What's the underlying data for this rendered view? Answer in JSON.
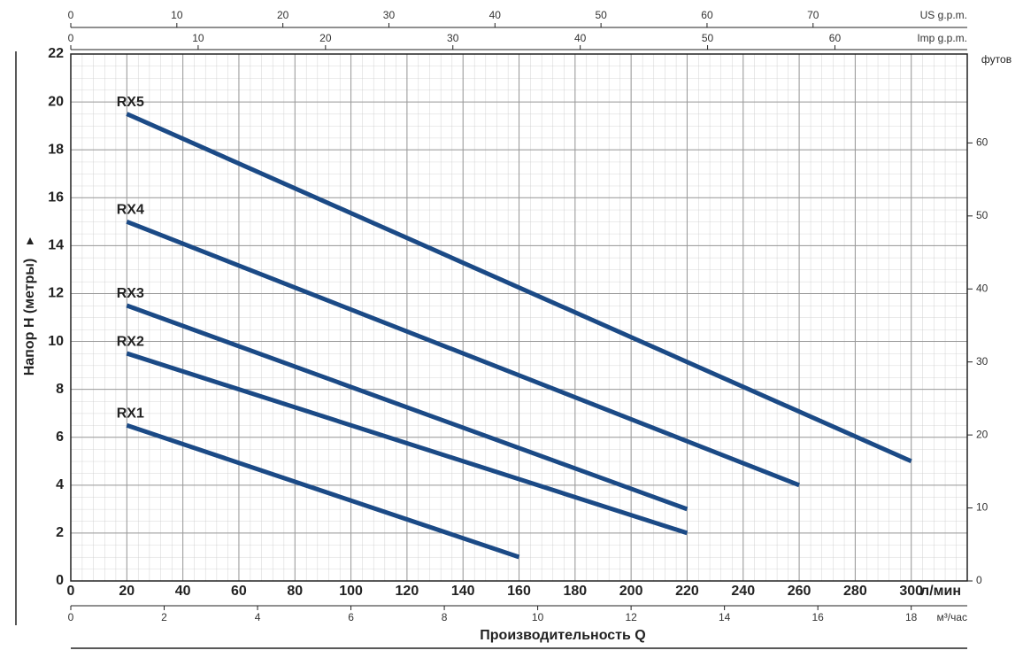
{
  "chart_data": {
    "type": "line",
    "xlabel": "л/мин",
    "ylabel": "Напор H (метры)",
    "x_title": "Производительность Q",
    "xlim": [
      0,
      320
    ],
    "xticks": [
      0,
      20,
      40,
      60,
      80,
      100,
      120,
      140,
      160,
      180,
      200,
      220,
      240,
      260,
      280,
      300
    ],
    "ylim": [
      0,
      22
    ],
    "yticks": [
      0,
      2,
      4,
      6,
      8,
      10,
      12,
      14,
      16,
      18,
      20,
      22
    ],
    "y2label": "футов",
    "y2lim": [
      0,
      72.18
    ],
    "y2ticks": [
      0,
      10,
      20,
      30,
      40,
      50,
      60
    ],
    "secondary_x_axes": [
      {
        "position": "top",
        "label": "US g.p.m.",
        "xlim": [
          0,
          84.54
        ],
        "xticks": [
          0,
          10,
          20,
          30,
          40,
          50,
          60,
          70
        ]
      },
      {
        "position": "top",
        "label": "Imp g.p.m.",
        "xlim": [
          0,
          70.39
        ],
        "xticks": [
          0,
          10,
          20,
          30,
          40,
          50,
          60
        ]
      },
      {
        "position": "bottom",
        "label": "м³/час",
        "xlim": [
          0,
          19.2
        ],
        "xticks": [
          0,
          2,
          4,
          6,
          8,
          10,
          12,
          14,
          16,
          18
        ]
      }
    ],
    "grid": true,
    "series": [
      {
        "name": "RX5",
        "color": "#1b4a86",
        "x": [
          20,
          300
        ],
        "values": [
          19.5,
          5
        ]
      },
      {
        "name": "RX4",
        "color": "#1b4a86",
        "x": [
          20,
          260
        ],
        "values": [
          15,
          4
        ]
      },
      {
        "name": "RX3",
        "color": "#1b4a86",
        "x": [
          20,
          220
        ],
        "values": [
          11.5,
          3
        ]
      },
      {
        "name": "RX2",
        "color": "#1b4a86",
        "x": [
          20,
          220
        ],
        "values": [
          9.5,
          2
        ]
      },
      {
        "name": "RX1",
        "color": "#1b4a86",
        "x": [
          20,
          160
        ],
        "values": [
          6.5,
          1
        ]
      }
    ]
  }
}
